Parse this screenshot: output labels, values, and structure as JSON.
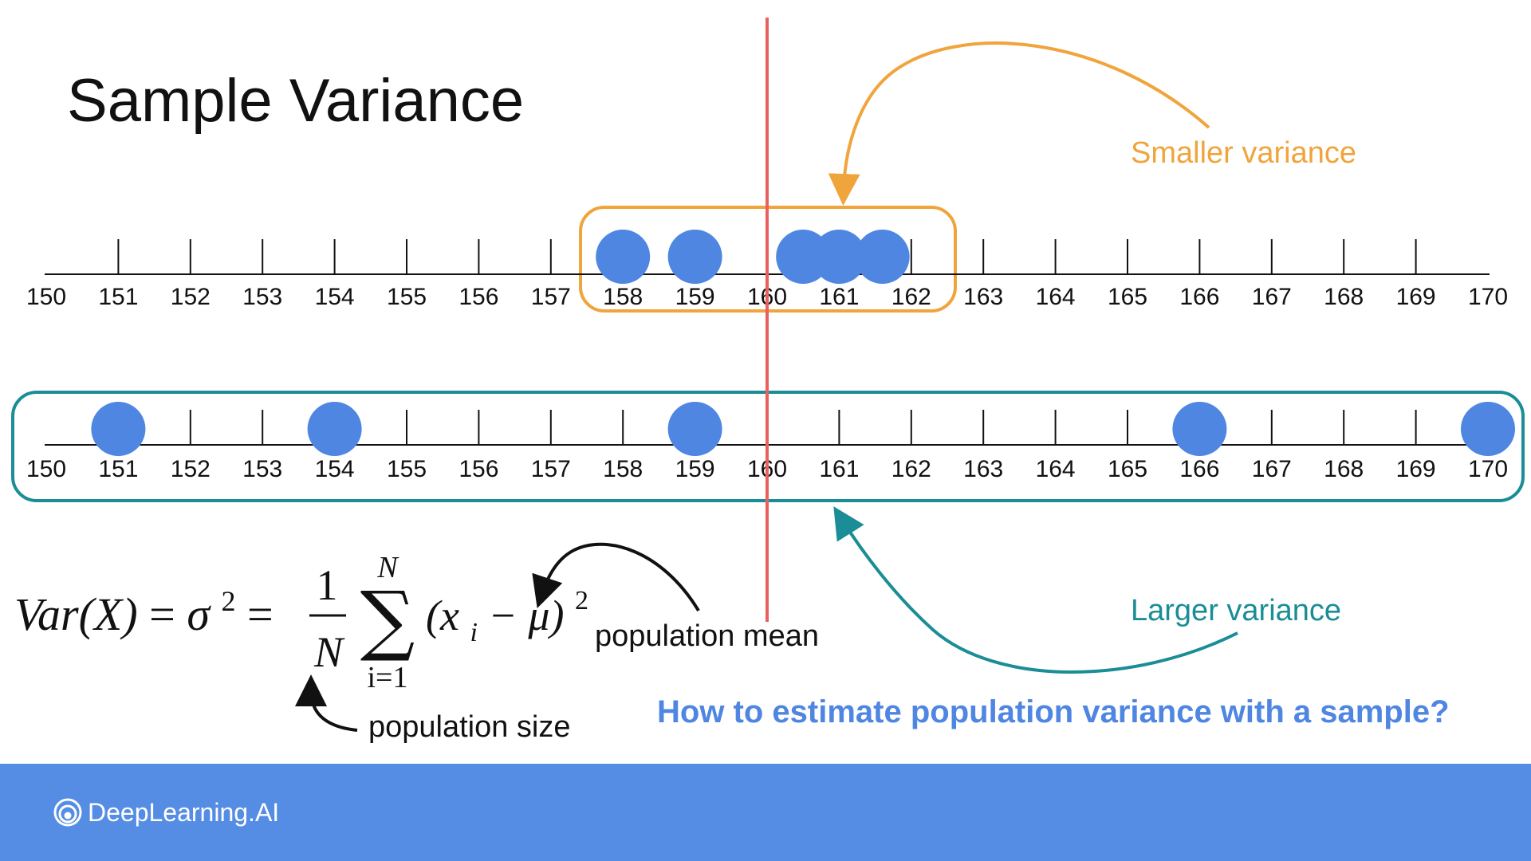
{
  "title": "Sample Variance",
  "axis_ticks": [
    "150",
    "151",
    "152",
    "153",
    "154",
    "155",
    "156",
    "157",
    "158",
    "159",
    "160",
    "161",
    "162",
    "163",
    "164",
    "165",
    "166",
    "167",
    "168",
    "169",
    "170"
  ],
  "mean_value": 160,
  "small_variance_sample": {
    "label": "Smaller variance",
    "values": [
      158,
      159,
      160.5,
      161,
      161.6
    ]
  },
  "large_variance_sample": {
    "label": "Larger variance",
    "values": [
      151,
      154,
      159,
      166,
      170
    ]
  },
  "formula": {
    "lhs": "Var(X)",
    "sigma": "σ",
    "sq": "2",
    "frac_num": "1",
    "frac_den": "N",
    "sum_top": "N",
    "sum_bottom": "i=1",
    "sum_symbol": "∑",
    "term_open": "(x",
    "term_sub": "i",
    "term_minus_mu": " − μ)",
    "term_sq": "2"
  },
  "annotations": {
    "population_mean": "population mean",
    "population_size": "population size"
  },
  "question": "How to estimate population variance with a sample?",
  "footer": {
    "brand": "DeepLearning.AI"
  },
  "colors": {
    "dot": "#4f86e2",
    "mean_line": "#e8615f",
    "small_box": "#f0a43c",
    "large_box": "#1a8d96",
    "question": "#4f86e2",
    "footer_bg": "#548de3"
  }
}
